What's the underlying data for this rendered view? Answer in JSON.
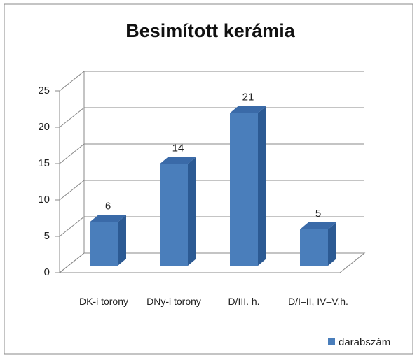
{
  "chart_data": {
    "type": "bar3d",
    "title": "Besimított kerámia",
    "categories": [
      "DK-i torony",
      "DNy-i torony",
      "D/III. h.",
      "D/I–II, IV–V.h."
    ],
    "series": [
      {
        "name": "darabszám",
        "color": "#4a7ebb",
        "values": [
          6,
          14,
          21,
          5
        ]
      }
    ],
    "ylim": [
      0,
      25
    ],
    "yticks": [
      0,
      5,
      10,
      15,
      20,
      25
    ],
    "grid": true,
    "legend": "bottom-right"
  }
}
